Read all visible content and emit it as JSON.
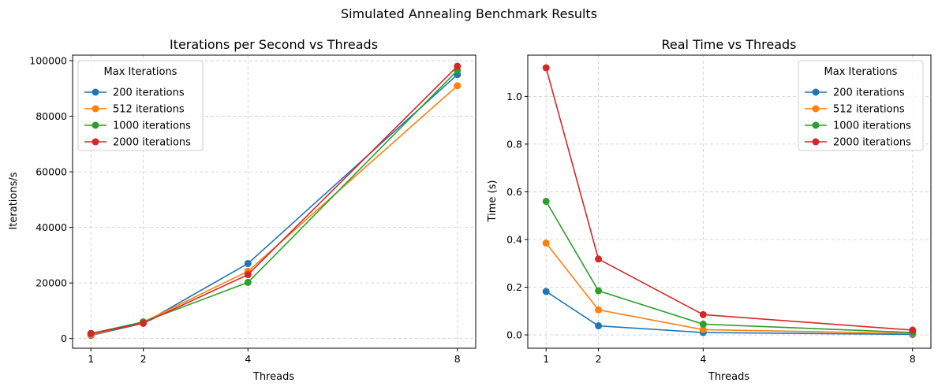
{
  "suptitle": "Simulated Annealing Benchmark Results",
  "colors": {
    "series": [
      "#1f77b4",
      "#ff7f0e",
      "#2ca02c",
      "#d62728"
    ],
    "grid": "#cccccc",
    "axis": "#000000",
    "legend_border": "#cccccc"
  },
  "chart_data": [
    {
      "type": "line",
      "title": "Iterations per Second vs Threads",
      "xlabel": "Threads",
      "ylabel": "Iterations/s",
      "x": [
        1,
        2,
        4,
        8
      ],
      "xticks": [
        "1",
        "2",
        "4",
        "8"
      ],
      "xlim": [
        0.65,
        8.35
      ],
      "ylim": [
        -3500,
        102000
      ],
      "yticks": [
        0,
        20000,
        40000,
        60000,
        80000,
        100000
      ],
      "ytick_labels": [
        "0",
        "20000",
        "40000",
        "60000",
        "80000",
        "100000"
      ],
      "grid": true,
      "legend": {
        "title": "Max Iterations",
        "placement": "top-left"
      },
      "series": [
        {
          "name": "200 iterations",
          "values": [
            1100,
            5500,
            27000,
            95000
          ]
        },
        {
          "name": "512 iterations",
          "values": [
            1300,
            5900,
            24200,
            91000
          ]
        },
        {
          "name": "1000 iterations",
          "values": [
            1800,
            6000,
            20200,
            96500
          ]
        },
        {
          "name": "2000 iterations",
          "values": [
            1800,
            5500,
            23000,
            98000
          ]
        }
      ]
    },
    {
      "type": "line",
      "title": "Real Time vs Threads",
      "xlabel": "Threads",
      "ylabel": "Time (s)",
      "x": [
        1,
        2,
        4,
        8
      ],
      "xticks": [
        "1",
        "2",
        "4",
        "8"
      ],
      "xlim": [
        0.65,
        8.35
      ],
      "ylim": [
        -0.056,
        1.173
      ],
      "yticks": [
        0,
        0.2,
        0.4,
        0.6,
        0.8,
        1.0
      ],
      "ytick_labels": [
        "0.0",
        "0.2",
        "0.4",
        "0.6",
        "0.8",
        "1.0"
      ],
      "grid": true,
      "legend": {
        "title": "Max Iterations",
        "placement": "top-right"
      },
      "series": [
        {
          "name": "200 iterations",
          "values": [
            0.182,
            0.038,
            0.01,
            0.002
          ]
        },
        {
          "name": "512 iterations",
          "values": [
            0.385,
            0.105,
            0.022,
            0.006
          ]
        },
        {
          "name": "1000 iterations",
          "values": [
            0.56,
            0.185,
            0.045,
            0.01
          ]
        },
        {
          "name": "2000 iterations",
          "values": [
            1.12,
            0.318,
            0.085,
            0.02
          ]
        }
      ]
    }
  ]
}
